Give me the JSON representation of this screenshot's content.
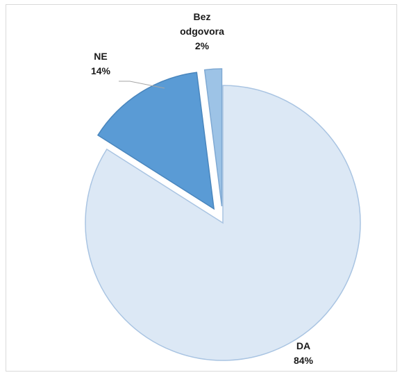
{
  "chart_data": {
    "type": "pie",
    "title": "",
    "legend": "none",
    "slices": [
      {
        "name": "DA",
        "value": 84,
        "value_label": "84%",
        "label_lines": [
          "DA"
        ],
        "color": "#dce8f5",
        "stroke": "#a9c4e2",
        "exploded": false
      },
      {
        "name": "NE",
        "value": 14,
        "value_label": "14%",
        "label_lines": [
          "NE"
        ],
        "color": "#5a9bd5",
        "stroke": "#4a86bd",
        "exploded": true
      },
      {
        "name": "Bez odgovora",
        "value": 2,
        "value_label": "2%",
        "label_lines": [
          "Bez",
          "odgovora"
        ],
        "color": "#9dc3e6",
        "stroke": "#7fa9d3",
        "exploded": true
      }
    ]
  }
}
